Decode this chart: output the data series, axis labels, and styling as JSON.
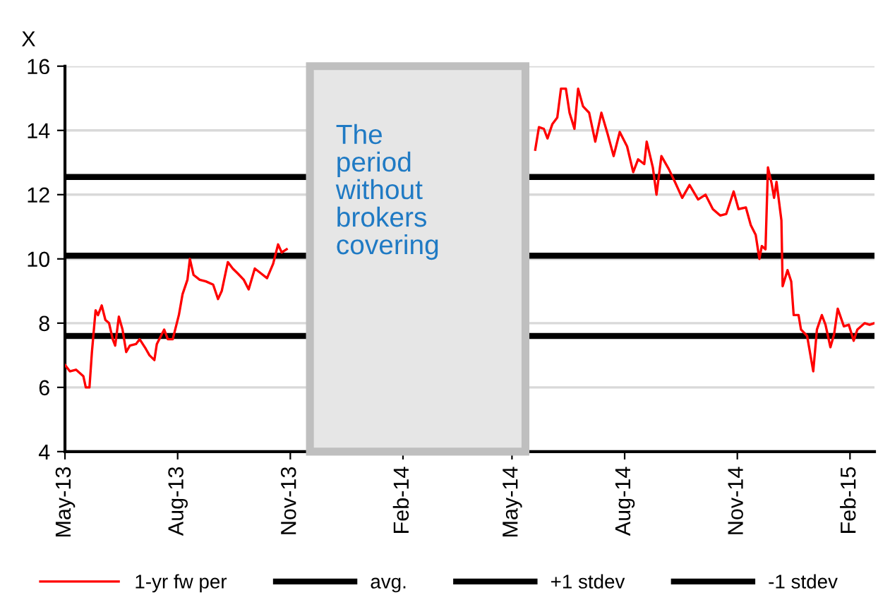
{
  "chart_data": {
    "type": "line",
    "ylabel": "X",
    "x": [
      "2013-05-01",
      "2013-05-05",
      "2013-05-10",
      "2013-05-16",
      "2013-05-18",
      "2013-05-21",
      "2013-05-23",
      "2013-05-26",
      "2013-05-28",
      "2013-05-31",
      "2013-06-03",
      "2013-06-06",
      "2013-06-09",
      "2013-06-11",
      "2013-06-14",
      "2013-06-17",
      "2013-06-20",
      "2013-06-23",
      "2013-06-28",
      "2013-07-01",
      "2013-07-06",
      "2013-07-09",
      "2013-07-13",
      "2013-07-15",
      "2013-07-21",
      "2013-07-24",
      "2013-07-28",
      "2013-08-02",
      "2013-08-05",
      "2013-08-09",
      "2013-08-11",
      "2013-08-14",
      "2013-08-19",
      "2013-08-24",
      "2013-08-30",
      "2013-09-03",
      "2013-09-06",
      "2013-09-11",
      "2013-09-15",
      "2013-09-19",
      "2013-09-24",
      "2013-09-28",
      "2013-10-03",
      "2013-10-08",
      "2013-10-13",
      "2013-10-18",
      "2013-10-22",
      "2013-10-25",
      "2013-10-29",
      "2014-01-01",
      "2014-05-20",
      "2014-05-23",
      "2014-05-27",
      "2014-05-30",
      "2014-06-03",
      "2014-06-07",
      "2014-06-10",
      "2014-06-14",
      "2014-06-17",
      "2014-06-21",
      "2014-06-24",
      "2014-06-28",
      "2014-07-03",
      "2014-07-08",
      "2014-07-13",
      "2014-07-18",
      "2014-07-23",
      "2014-07-28",
      "2014-08-03",
      "2014-08-08",
      "2014-08-12",
      "2014-08-17",
      "2014-08-19",
      "2014-08-24",
      "2014-08-27",
      "2014-08-31",
      "2014-09-06",
      "2014-09-11",
      "2014-09-17",
      "2014-09-23",
      "2014-09-30",
      "2014-10-06",
      "2014-10-12",
      "2014-10-18",
      "2014-10-23",
      "2014-10-29",
      "2014-11-02",
      "2014-11-08",
      "2014-11-12",
      "2014-11-16",
      "2014-11-19",
      "2014-11-21",
      "2014-11-24",
      "2014-11-26",
      "2014-11-29",
      "2014-12-01",
      "2014-12-03",
      "2014-12-07",
      "2014-12-08",
      "2014-12-12",
      "2014-12-15",
      "2014-12-17",
      "2014-12-21",
      "2014-12-23",
      "2014-12-28",
      "2015-01-02",
      "2015-01-05",
      "2015-01-09",
      "2015-01-12",
      "2015-01-16",
      "2015-01-19",
      "2015-01-22",
      "2015-01-27",
      "2015-01-31",
      "2015-02-04",
      "2015-02-07",
      "2015-02-13",
      "2015-02-17",
      "2015-02-21"
    ],
    "series": [
      {
        "name": "1-yr fw per",
        "color": "#ff0000",
        "values": [
          6.7,
          6.5,
          6.55,
          6.35,
          6.0,
          6.0,
          7.1,
          8.4,
          8.25,
          8.55,
          8.1,
          8.0,
          7.5,
          7.3,
          8.2,
          7.8,
          7.1,
          7.3,
          7.35,
          7.5,
          7.2,
          7.0,
          6.85,
          7.35,
          7.8,
          7.5,
          7.5,
          8.25,
          8.9,
          9.35,
          10.0,
          9.5,
          9.35,
          9.3,
          9.2,
          8.75,
          9.0,
          9.9,
          9.7,
          9.55,
          9.35,
          9.05,
          9.7,
          9.55,
          9.4,
          9.85,
          10.45,
          10.2,
          10.3,
          null,
          13.4,
          14.1,
          14.05,
          13.75,
          14.2,
          14.4,
          15.3,
          15.3,
          14.55,
          14.05,
          15.3,
          14.75,
          14.55,
          13.65,
          14.55,
          13.9,
          13.2,
          13.95,
          13.5,
          12.7,
          13.1,
          12.95,
          13.65,
          12.85,
          12.0,
          13.2,
          12.8,
          12.4,
          11.9,
          12.3,
          11.85,
          12.0,
          11.55,
          11.35,
          11.4,
          12.1,
          11.55,
          11.6,
          11.05,
          10.75,
          10.0,
          10.4,
          10.3,
          12.85,
          12.35,
          11.9,
          12.4,
          11.2,
          9.15,
          9.65,
          9.3,
          8.25,
          8.25,
          7.8,
          7.6,
          6.5,
          7.8,
          8.25,
          7.95,
          7.25,
          7.65,
          8.45,
          7.9,
          7.95,
          7.45,
          7.8,
          8.0,
          7.95,
          8.0
        ]
      }
    ],
    "ref_lines": [
      {
        "axis": "y",
        "value": 10.1,
        "label": "avg.",
        "color": "#000000"
      },
      {
        "axis": "y",
        "value": 12.55,
        "label": "+1 stdev",
        "color": "#000000"
      },
      {
        "axis": "y",
        "value": 7.6,
        "label": "-1 stdev",
        "color": "#000000"
      }
    ],
    "bands": [
      {
        "axis": "x",
        "from": "2013-11-17",
        "to": "2014-05-12",
        "label": "The\nperiod\nwithout\nbrokers\ncovering",
        "color": "#e6e6e6"
      }
    ],
    "xlim": [
      "2013-05-01",
      "2015-02-21"
    ],
    "xticks": [
      {
        "value": "2013-05-01",
        "label": "May-13"
      },
      {
        "value": "2013-08-01",
        "label": "Aug-13"
      },
      {
        "value": "2013-11-01",
        "label": "Nov-13"
      },
      {
        "value": "2014-02-01",
        "label": "Feb-14"
      },
      {
        "value": "2014-05-01",
        "label": "May-14"
      },
      {
        "value": "2014-08-01",
        "label": "Aug-14"
      },
      {
        "value": "2014-11-01",
        "label": "Nov-14"
      },
      {
        "value": "2015-02-01",
        "label": "Feb-15"
      }
    ],
    "ylim": [
      4,
      16
    ],
    "yticks": [
      4,
      6,
      8,
      10,
      12,
      14,
      16
    ],
    "grid": "y",
    "legend": "bottom",
    "marker": "none",
    "line_style": "solid"
  }
}
